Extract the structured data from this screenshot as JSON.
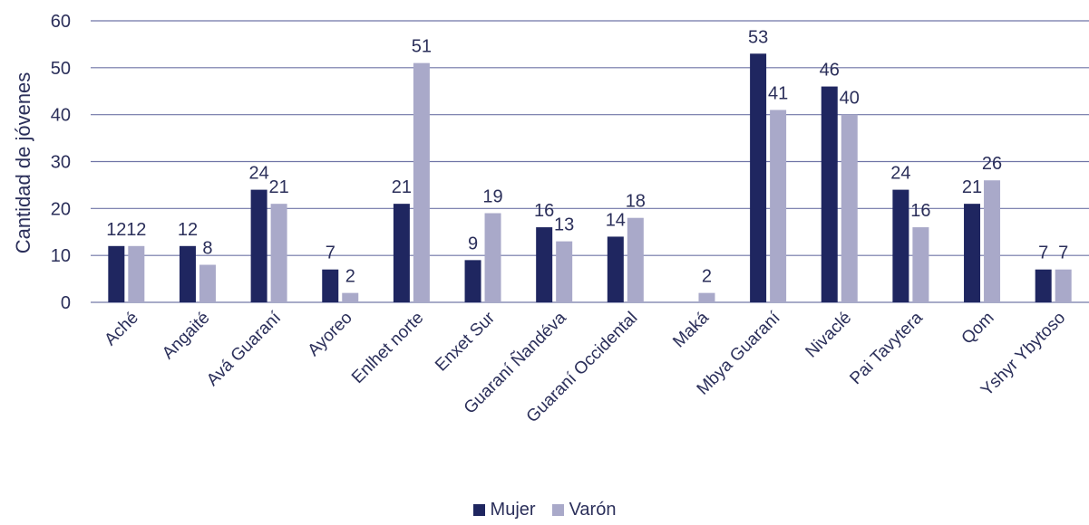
{
  "chart_data": {
    "type": "bar",
    "ylabel": "Cantidad de jóvenes",
    "xlabel": "",
    "ylim": [
      0,
      60
    ],
    "yticks": [
      0,
      10,
      20,
      30,
      40,
      50,
      60
    ],
    "grid": true,
    "legend_position": "bottom-center",
    "categories": [
      "Aché",
      "Angaité",
      "Avá Guaraní",
      "Ayoreo",
      "Enlhet norte",
      "Enxet Sur",
      "Guaraní Ñandéva",
      "Guaraní Occidental",
      "Maká",
      "Mbya Guaraní",
      "Nivaclé",
      "Pai Tavytera",
      "Qom",
      "Yshyr Ybytoso"
    ],
    "series": [
      {
        "name": "Mujer",
        "color": "#1f2660",
        "values": [
          12,
          12,
          24,
          7,
          21,
          9,
          16,
          14,
          null,
          53,
          46,
          24,
          21,
          7
        ]
      },
      {
        "name": "Varón",
        "color": "#a9a9c9",
        "values": [
          12,
          8,
          21,
          2,
          51,
          19,
          13,
          18,
          2,
          41,
          40,
          16,
          26,
          7
        ]
      }
    ]
  }
}
